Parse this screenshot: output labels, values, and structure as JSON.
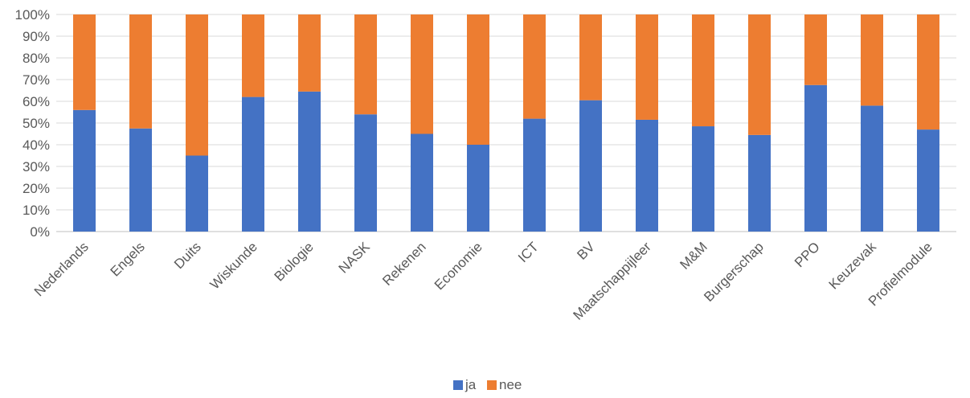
{
  "chart_data": {
    "type": "bar",
    "stacked": true,
    "percent_stacked": true,
    "categories": [
      "Nederlands",
      "Engels",
      "Duits",
      "Wiskunde",
      "Biologie",
      "NASK",
      "Rekenen",
      "Economie",
      "ICT",
      "BV",
      "Maatschappijleer",
      "M&M",
      "Burgerschap",
      "PPO",
      "Keuzevak",
      "Profielmodule"
    ],
    "series": [
      {
        "name": "ja",
        "color": "#4472C4",
        "values": [
          56,
          47.5,
          35,
          62,
          64.5,
          54,
          45,
          40,
          52,
          60.5,
          51.5,
          48.5,
          44.5,
          67.5,
          58,
          47
        ]
      },
      {
        "name": "nee",
        "color": "#ED7D31",
        "values": [
          44,
          52.5,
          65,
          38,
          35.5,
          46,
          55,
          60,
          48,
          39.5,
          48.5,
          51.5,
          55.5,
          32.5,
          42,
          53
        ]
      }
    ],
    "yticks": [
      "0%",
      "10%",
      "20%",
      "30%",
      "40%",
      "50%",
      "60%",
      "70%",
      "80%",
      "90%",
      "100%"
    ],
    "ylim": [
      0,
      100
    ],
    "grid": true,
    "legend_position": "bottom"
  }
}
